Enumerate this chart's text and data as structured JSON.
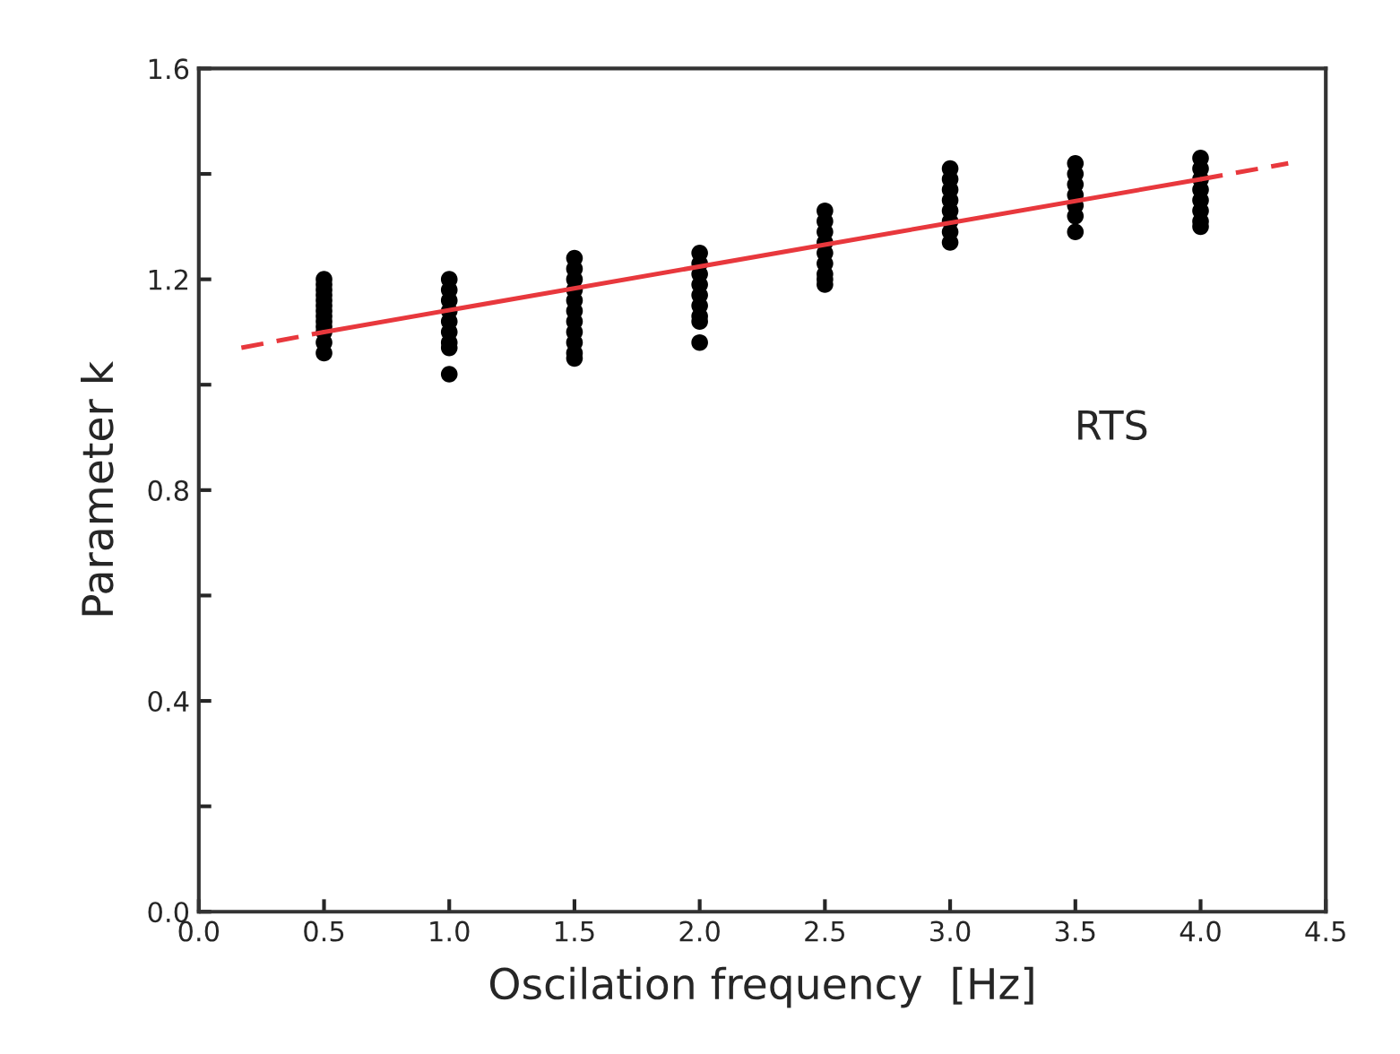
{
  "chart_data": {
    "type": "scatter",
    "xlabel": "Oscilation frequency  [Hz]",
    "ylabel": "Parameter k",
    "annotations": [
      "RTS"
    ],
    "xlim": [
      0.0,
      4.5
    ],
    "ylim": [
      0.0,
      1.6
    ],
    "xticks": [
      {
        "value": 0.0,
        "label": "0.0"
      },
      {
        "value": 0.5,
        "label": "0.5"
      },
      {
        "value": 1.0,
        "label": "1.0"
      },
      {
        "value": 1.5,
        "label": "1.5"
      },
      {
        "value": 2.0,
        "label": "2.0"
      },
      {
        "value": 2.5,
        "label": "2.5"
      },
      {
        "value": 3.0,
        "label": "3.0"
      },
      {
        "value": 3.5,
        "label": "3.5"
      },
      {
        "value": 4.0,
        "label": "4.0"
      },
      {
        "value": 4.5,
        "label": "4.5"
      }
    ],
    "yticks": [
      {
        "value": 0.0,
        "label": "0.0"
      },
      {
        "value": 0.2,
        "label": null
      },
      {
        "value": 0.4,
        "label": "0.4"
      },
      {
        "value": 0.6,
        "label": null
      },
      {
        "value": 0.8,
        "label": "0.8"
      },
      {
        "value": 1.0,
        "label": null
      },
      {
        "value": 1.2,
        "label": "1.2"
      },
      {
        "value": 1.4,
        "label": null
      },
      {
        "value": 1.6,
        "label": "1.6"
      }
    ],
    "grid": false,
    "legend": false,
    "series": [
      {
        "marker": "circle",
        "color": "#000000",
        "x": [
          0.5,
          0.5,
          0.5,
          0.5,
          0.5,
          0.5,
          0.5,
          0.5,
          0.5,
          0.5,
          0.5,
          0.5,
          0.5,
          1.0,
          1.0,
          1.0,
          1.0,
          1.0,
          1.0,
          1.0,
          1.0,
          1.0,
          1.5,
          1.5,
          1.5,
          1.5,
          1.5,
          1.5,
          1.5,
          1.5,
          1.5,
          1.5,
          1.5,
          2.0,
          2.0,
          2.0,
          2.0,
          2.0,
          2.0,
          2.0,
          2.0,
          2.0,
          2.5,
          2.5,
          2.5,
          2.5,
          2.5,
          2.5,
          2.5,
          2.5,
          2.5,
          3.0,
          3.0,
          3.0,
          3.0,
          3.0,
          3.0,
          3.0,
          3.0,
          3.5,
          3.5,
          3.5,
          3.5,
          3.5,
          3.5,
          3.5,
          4.0,
          4.0,
          4.0,
          4.0,
          4.0,
          4.0,
          4.0,
          4.0
        ],
        "values": [
          1.2,
          1.19,
          1.18,
          1.17,
          1.16,
          1.15,
          1.14,
          1.13,
          1.12,
          1.11,
          1.1,
          1.08,
          1.06,
          1.2,
          1.18,
          1.16,
          1.14,
          1.12,
          1.1,
          1.08,
          1.07,
          1.02,
          1.24,
          1.22,
          1.2,
          1.18,
          1.16,
          1.14,
          1.12,
          1.1,
          1.08,
          1.06,
          1.05,
          1.25,
          1.23,
          1.21,
          1.19,
          1.17,
          1.15,
          1.13,
          1.12,
          1.08,
          1.33,
          1.31,
          1.29,
          1.27,
          1.25,
          1.23,
          1.21,
          1.2,
          1.19,
          1.41,
          1.39,
          1.37,
          1.35,
          1.33,
          1.31,
          1.29,
          1.27,
          1.42,
          1.4,
          1.38,
          1.36,
          1.34,
          1.32,
          1.29,
          1.43,
          1.41,
          1.39,
          1.37,
          1.35,
          1.33,
          1.31,
          1.3
        ]
      },
      {
        "type": "line",
        "color": "#e8383d",
        "line_style": "dashed",
        "x": [
          0.17,
          0.5
        ],
        "values": [
          1.07,
          1.1
        ]
      },
      {
        "type": "line",
        "color": "#e8383d",
        "line_style": "solid",
        "x": [
          0.5,
          4.0
        ],
        "values": [
          1.1,
          1.39
        ]
      },
      {
        "type": "line",
        "color": "#e8383d",
        "line_style": "dashed",
        "x": [
          4.0,
          4.35
        ],
        "values": [
          1.39,
          1.42
        ]
      }
    ]
  }
}
